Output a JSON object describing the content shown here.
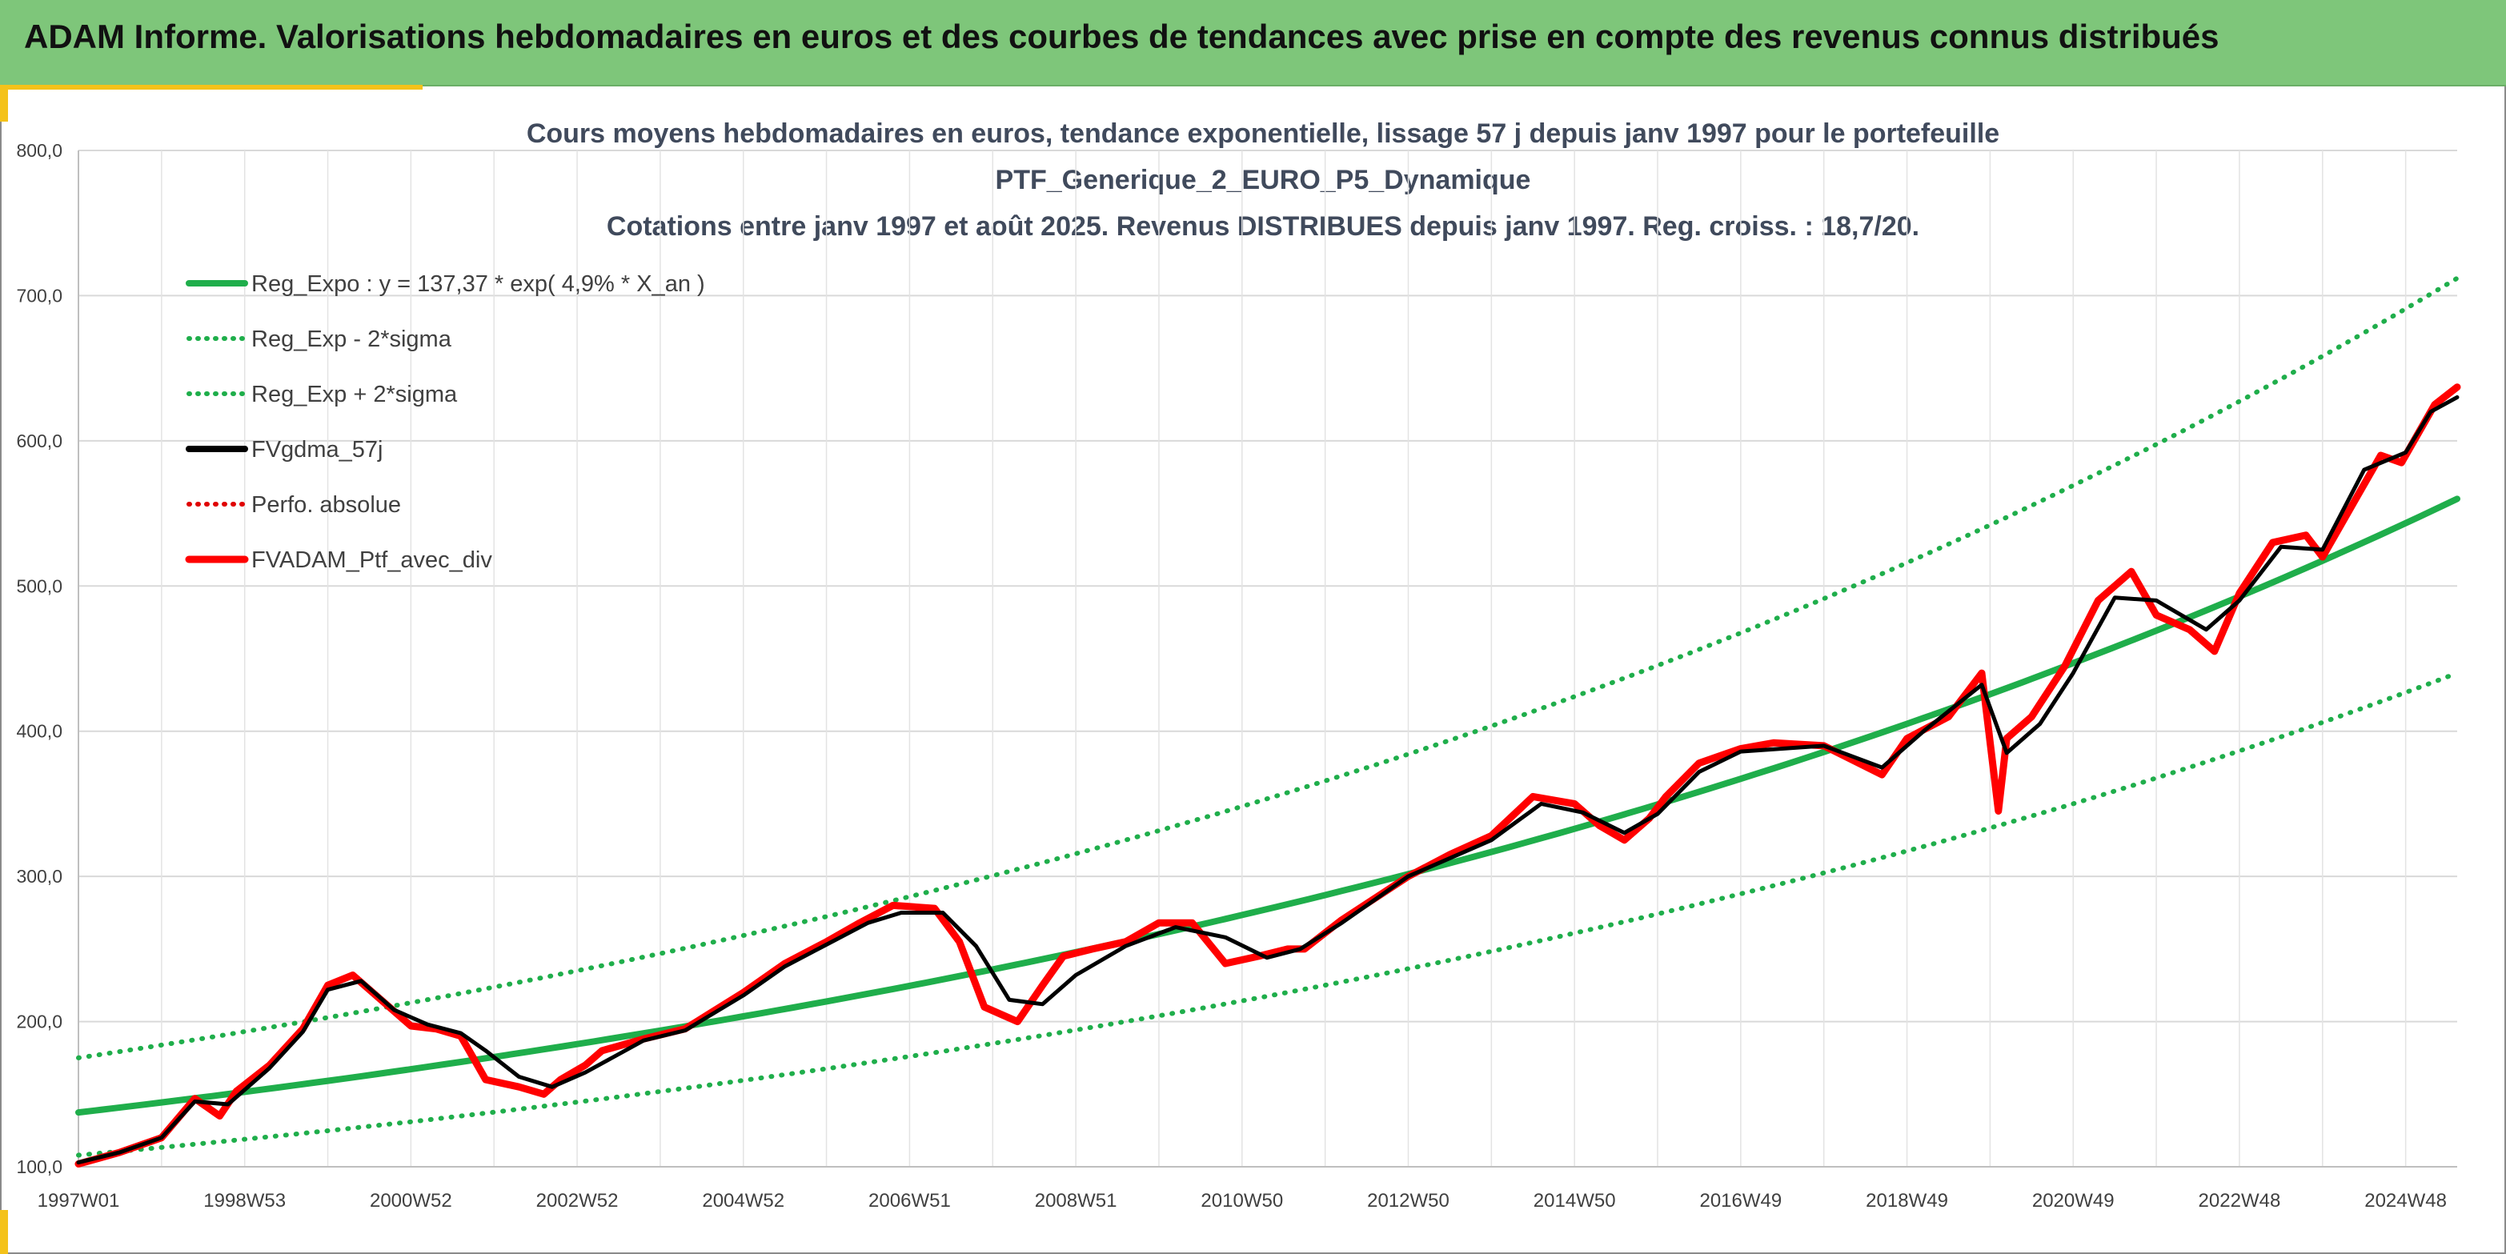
{
  "banner": {
    "title": "ADAM Informe. Valorisations hebdomadaires en euros et des courbes de tendances avec prise en compte des revenus connus distribués"
  },
  "colors": {
    "banner_bg": "#7ec67a",
    "accent": "#f4c21a",
    "trend_green": "#1fae4b",
    "fvgdma_black": "#000000",
    "portfolio_red": "#ff0000"
  },
  "chart_data": {
    "type": "line",
    "title_lines": [
      "Cours moyens hebdomadaires en euros, tendance exponentielle, lissage 57 j depuis janv 1997 pour le portefeuille",
      "PTF_Generique_2_EURO_P5_Dynamique",
      "Cotations entre janv 1997 et août 2025. Revenus DISTRIBUES depuis janv 1997. Reg. croiss. : 18,7/20."
    ],
    "xlabel": "",
    "ylabel": "",
    "ylim": [
      100,
      800
    ],
    "y_ticks": [
      "100,0",
      "200,0",
      "300,0",
      "400,0",
      "500,0",
      "600,0",
      "700,0",
      "800,0"
    ],
    "x_range": [
      1997.0,
      2025.62
    ],
    "x_ticks": [
      {
        "label": "1997W01",
        "x": 1997.0
      },
      {
        "label": "1998W53",
        "x": 1999.0
      },
      {
        "label": "2000W52",
        "x": 2001.0
      },
      {
        "label": "2002W52",
        "x": 2003.0
      },
      {
        "label": "2004W52",
        "x": 2005.0
      },
      {
        "label": "2006W51",
        "x": 2007.0
      },
      {
        "label": "2008W51",
        "x": 2009.0
      },
      {
        "label": "2010W50",
        "x": 2011.0
      },
      {
        "label": "2012W50",
        "x": 2013.0
      },
      {
        "label": "2014W50",
        "x": 2015.0
      },
      {
        "label": "2016W49",
        "x": 2017.0
      },
      {
        "label": "2018W49",
        "x": 2019.0
      },
      {
        "label": "2020W49",
        "x": 2021.0
      },
      {
        "label": "2022W48",
        "x": 2023.0
      },
      {
        "label": "2024W48",
        "x": 2025.0
      }
    ],
    "grid": true,
    "legend_position": "top-left",
    "legend": [
      {
        "label": "Reg_Expo : y = 137,37 * exp( 4,9% *  X_an )",
        "series": "reg_expo"
      },
      {
        "label": "Reg_Exp - 2*sigma",
        "series": "reg_minus"
      },
      {
        "label": "Reg_Exp + 2*sigma",
        "series": "reg_plus"
      },
      {
        "label": "FVgdma_57j",
        "series": "fvgdma"
      },
      {
        "label": "Perfo. absolue",
        "series": "perfo"
      },
      {
        "label": "FVADAM_Ptf_avec_div",
        "series": "fvadam"
      }
    ],
    "series": [
      {
        "key": "reg_expo",
        "name": "Reg_Expo : y = 137,37 * exp( 4,9% *  X_an )",
        "style": "solid",
        "color": "#1fae4b",
        "x": [
          1997,
          2001,
          2005,
          2009,
          2013,
          2017,
          2021,
          2025.62
        ],
        "y": [
          137.4,
          167.2,
          203.6,
          247.8,
          301.6,
          367.2,
          446.9,
          560.0
        ]
      },
      {
        "key": "reg_minus",
        "name": "Reg_Exp - 2*sigma",
        "style": "dotted",
        "color": "#1fae4b",
        "x": [
          1997,
          2001,
          2005,
          2009,
          2013,
          2017,
          2021,
          2025.62
        ],
        "y": [
          108.0,
          131.0,
          159.5,
          194.2,
          236.4,
          288.0,
          350.0,
          440.0
        ]
      },
      {
        "key": "reg_plus",
        "name": "Reg_Exp + 2*sigma",
        "style": "dotted",
        "color": "#1fae4b",
        "x": [
          1997,
          2001,
          2005,
          2009,
          2013,
          2017,
          2021,
          2025.62
        ],
        "y": [
          175.0,
          213.0,
          259.3,
          315.6,
          384.2,
          467.7,
          569.3,
          712.0
        ]
      },
      {
        "key": "fvadam",
        "name": "FVADAM_Ptf_avec_div",
        "style": "solid",
        "color": "#ff0000",
        "x": [
          1997.0,
          1997.5,
          1998.0,
          1998.4,
          1998.7,
          1998.9,
          1999.3,
          1999.7,
          2000.0,
          2000.3,
          2000.7,
          2001.0,
          2001.3,
          2001.6,
          2001.75,
          2001.9,
          2002.3,
          2002.6,
          2002.8,
          2003.1,
          2003.3,
          2003.8,
          2004.3,
          2005.0,
          2005.5,
          2006.0,
          2006.4,
          2006.8,
          2007.3,
          2007.6,
          2007.9,
          2008.3,
          2008.6,
          2008.85,
          2009.2,
          2009.6,
          2010.0,
          2010.4,
          2010.8,
          2011.2,
          2011.55,
          2011.75,
          2012.2,
          2012.6,
          2013.0,
          2013.5,
          2014.0,
          2014.5,
          2015.0,
          2015.3,
          2015.6,
          2015.9,
          2016.1,
          2016.5,
          2017.0,
          2017.4,
          2018.0,
          2018.7,
          2019.0,
          2019.5,
          2019.9,
          2020.1,
          2020.2,
          2020.5,
          2020.9,
          2021.3,
          2021.7,
          2022.0,
          2022.4,
          2022.7,
          2023.0,
          2023.4,
          2023.8,
          2024.0,
          2024.4,
          2024.7,
          2024.95,
          2025.1,
          2025.35,
          2025.62
        ],
        "y": [
          102,
          110,
          120,
          147,
          135,
          152,
          170,
          195,
          225,
          232,
          212,
          197,
          195,
          190,
          175,
          160,
          155,
          150,
          160,
          170,
          180,
          188,
          195,
          220,
          240,
          255,
          268,
          280,
          278,
          255,
          210,
          200,
          225,
          245,
          250,
          255,
          268,
          268,
          240,
          245,
          250,
          250,
          270,
          285,
          300,
          315,
          328,
          355,
          350,
          335,
          325,
          340,
          355,
          378,
          388,
          392,
          390,
          370,
          395,
          410,
          440,
          345,
          395,
          410,
          445,
          490,
          510,
          480,
          470,
          455,
          495,
          530,
          535,
          520,
          560,
          590,
          585,
          600,
          625,
          637
        ]
      },
      {
        "key": "fvgdma",
        "name": "FVgdma_57j",
        "style": "solid",
        "color": "#000000",
        "x": [
          1997.0,
          1997.5,
          1998.0,
          1998.4,
          1998.8,
          1999.3,
          1999.7,
          2000.0,
          2000.4,
          2000.8,
          2001.2,
          2001.6,
          2001.9,
          2002.3,
          2002.7,
          2003.1,
          2003.8,
          2004.3,
          2005.0,
          2005.5,
          2006.0,
          2006.5,
          2006.9,
          2007.4,
          2007.8,
          2008.2,
          2008.6,
          2009.0,
          2009.6,
          2010.2,
          2010.8,
          2011.3,
          2011.7,
          2012.2,
          2013.0,
          2014.0,
          2014.6,
          2015.1,
          2015.6,
          2016.0,
          2016.5,
          2017.0,
          2018.0,
          2018.7,
          2019.2,
          2019.9,
          2020.2,
          2020.6,
          2021.0,
          2021.5,
          2022.0,
          2022.6,
          2023.0,
          2023.5,
          2024.0,
          2024.5,
          2025.0,
          2025.3,
          2025.62
        ],
        "y": [
          103,
          110,
          120,
          145,
          143,
          168,
          193,
          222,
          228,
          208,
          198,
          192,
          180,
          162,
          155,
          165,
          187,
          194,
          218,
          238,
          253,
          268,
          275,
          275,
          252,
          215,
          212,
          232,
          252,
          265,
          258,
          244,
          250,
          268,
          300,
          325,
          350,
          344,
          330,
          343,
          372,
          386,
          390,
          375,
          400,
          432,
          385,
          405,
          440,
          492,
          490,
          470,
          490,
          527,
          525,
          580,
          592,
          620,
          630
        ]
      }
    ]
  }
}
